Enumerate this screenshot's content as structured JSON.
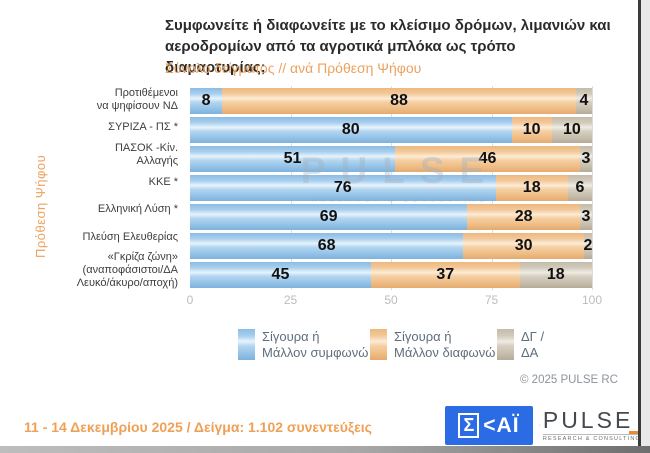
{
  "header": {
    "title_line1": "Συμφωνείτε ή διαφωνείτε με το κλείσιμο δρόμων, λιμανιών και",
    "title_line2": "αεροδρομίων από τα αγροτικά μπλόκα ως τρόπο διαμαρτυρίας;",
    "subtitle": "Σύνολο δείγματος // ανά Πρόθεση Ψήφου"
  },
  "chart_data": {
    "type": "bar",
    "orientation": "horizontal",
    "stacked": true,
    "ylabel": "Πρόθεση Ψήφου",
    "categories": [
      [
        "Προτιθέμενοι",
        "να ψηφίσουν ΝΔ"
      ],
      [
        "ΣΥΡΙΖΑ - ΠΣ *"
      ],
      [
        "ΠΑΣΟΚ -Κίν.",
        "Αλλαγής"
      ],
      [
        "ΚΚΕ *"
      ],
      [
        "Ελληνική Λύση *"
      ],
      [
        "Πλεύση Ελευθερίας"
      ],
      [
        "«Γκρίζα ζώνη»",
        "(αναποφάσιστοι/ΔΑ",
        "Λευκό/άκυρο/αποχή)"
      ]
    ],
    "series": [
      {
        "name": "Σίγουρα ή Μάλλον συμφωνώ",
        "color": "#a5cdec",
        "values": [
          8,
          80,
          51,
          76,
          69,
          68,
          45
        ]
      },
      {
        "name": "Σίγουρα ή Μάλλον διαφωνώ",
        "color": "#f2c897",
        "values": [
          88,
          10,
          46,
          18,
          28,
          30,
          37
        ]
      },
      {
        "name": "ΔΓ / ΔΑ",
        "color": "#cdc5b5",
        "values": [
          4,
          10,
          3,
          6,
          3,
          2,
          18
        ]
      }
    ],
    "xlim": [
      0,
      100
    ],
    "x_ticks": [
      "0",
      "25",
      "50",
      "75",
      "100"
    ],
    "grid_x": [
      25,
      50,
      75,
      100
    ],
    "legend_position": "bottom",
    "value_labels": true
  },
  "legend": {
    "items": [
      {
        "line1": "Σίγουρα ή",
        "line2": "Μάλλον συμφωνώ"
      },
      {
        "line1": "Σίγουρα ή",
        "line2": "Μάλλον διαφωνώ"
      },
      {
        "line1": "ΔΓ /",
        "line2": "ΔΑ"
      }
    ]
  },
  "watermark": {
    "line1": "PULSE",
    "line2": "RESEARCH & CONSULTING"
  },
  "footer": {
    "copyright": "© 2025 PULSE RC",
    "fieldwork": "11 - 14 Δεκεμβρίου 2025  /  Δείγμα:  1.102 συνεντεύξεις",
    "skai_sigma": "Σ",
    "skai_rest": "<ΑΪ",
    "pulse_word": "PULSE",
    "pulse_sub": "RESEARCH & CONSULTING"
  }
}
